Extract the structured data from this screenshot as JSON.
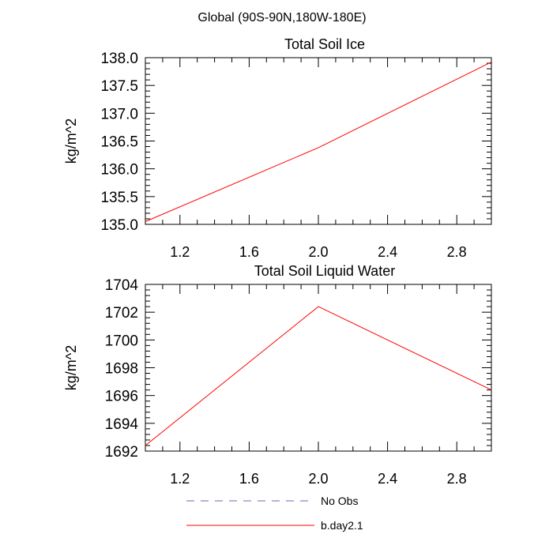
{
  "suptitle": "Global (90S-90N,180W-180E)",
  "chart_data": [
    {
      "type": "line",
      "title": "Total Soil Ice",
      "xlabel": "",
      "ylabel": "kg/m^2",
      "xlim": [
        1.0,
        3.0
      ],
      "ylim": [
        135.0,
        138.0
      ],
      "x_ticks": [
        1.2,
        1.6,
        2.0,
        2.4,
        2.8
      ],
      "x_tick_labels": [
        "1.2",
        "1.6",
        "2.0",
        "2.4",
        "2.8"
      ],
      "y_ticks": [
        135.0,
        135.5,
        136.0,
        136.5,
        137.0,
        137.5,
        138.0
      ],
      "y_tick_labels": [
        "135.0",
        "135.5",
        "136.0",
        "136.5",
        "137.0",
        "137.5",
        "138.0"
      ],
      "series": [
        {
          "name": "b.day2.1",
          "color": "#ff0000",
          "x": [
            1.0,
            2.0,
            3.0
          ],
          "values": [
            135.05,
            136.38,
            137.92
          ]
        }
      ]
    },
    {
      "type": "line",
      "title": "Total Soil Liquid Water",
      "xlabel": "",
      "ylabel": "kg/m^2",
      "xlim": [
        1.0,
        3.0
      ],
      "ylim": [
        1692,
        1704
      ],
      "x_ticks": [
        1.2,
        1.6,
        2.0,
        2.4,
        2.8
      ],
      "x_tick_labels": [
        "1.2",
        "1.6",
        "2.0",
        "2.4",
        "2.8"
      ],
      "y_ticks": [
        1692,
        1694,
        1696,
        1698,
        1700,
        1702,
        1704
      ],
      "y_tick_labels": [
        "1692",
        "1694",
        "1696",
        "1698",
        "1700",
        "1702",
        "1704"
      ],
      "series": [
        {
          "name": "b.day2.1",
          "color": "#ff0000",
          "x": [
            1.0,
            2.0,
            3.0
          ],
          "values": [
            1692.4,
            1702.4,
            1696.4
          ]
        }
      ]
    }
  ],
  "legend": [
    {
      "label": "No Obs",
      "color": "#6a6ab0",
      "style": "dashed"
    },
    {
      "label": "b.day2.1",
      "color": "#ff0000",
      "style": "solid"
    }
  ]
}
